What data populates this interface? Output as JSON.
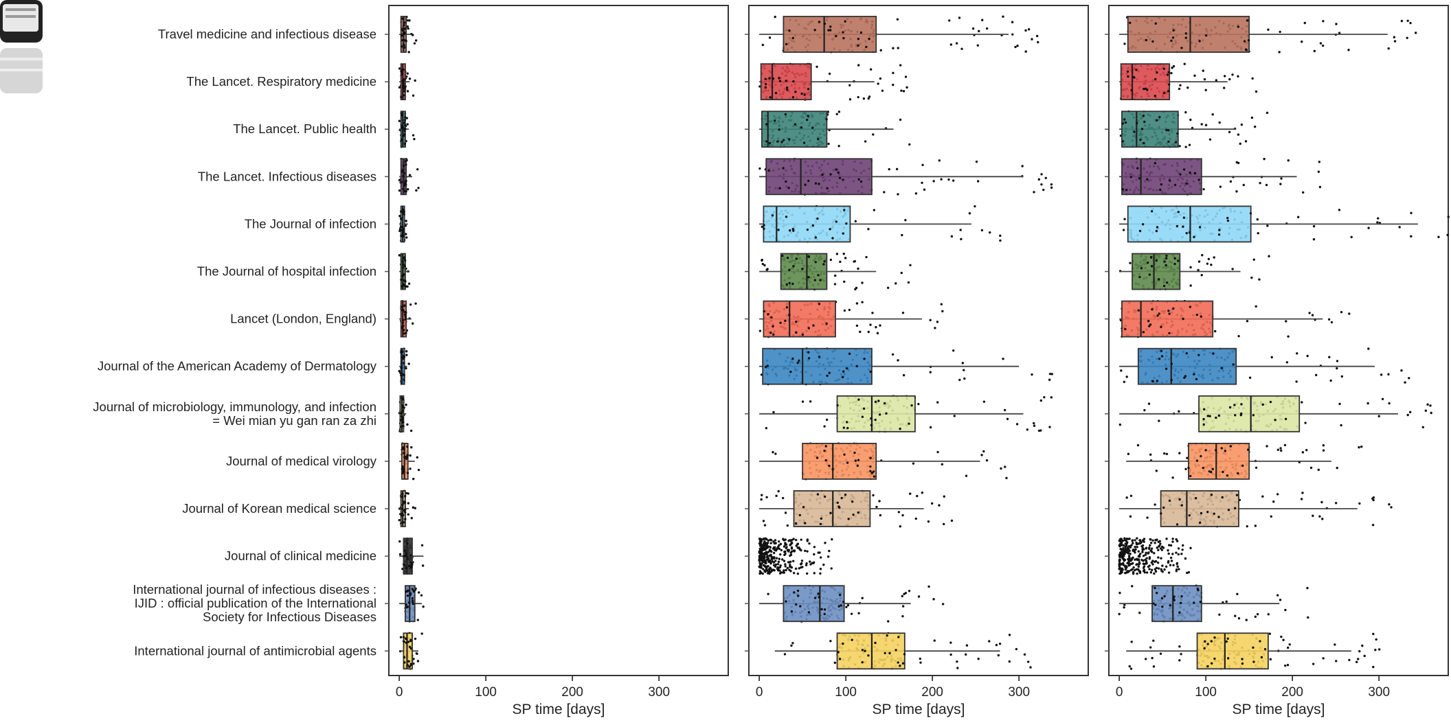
{
  "chart_data": {
    "type": "boxplot",
    "categories": [
      "Travel medicine and infectious disease",
      "The Lancet. Respiratory medicine",
      "The Lancet. Public health",
      "The Lancet. Infectious diseases",
      "The Journal of infection",
      "The Journal of hospital infection",
      "Lancet (London, England)",
      "Journal of the American Academy of Dermatology",
      "Journal of microbiology, immunology, and infection\n= Wei mian yu gan ran za zhi",
      "Journal of medical virology",
      "Journal of Korean medical science",
      "Journal of clinical medicine",
      "International journal of infectious diseases :\nIJID : official publication of the International\nSociety for Infectious Diseases",
      "International journal of antimicrobial agents"
    ],
    "colors": [
      "#b9725e",
      "#d9484c",
      "#3d8378",
      "#6e4376",
      "#8fd8f7",
      "#5e8a4c",
      "#f26b57",
      "#3b86c2",
      "#dbe6a4",
      "#f79460",
      "#d8b896",
      "#2f2f2f",
      "#6d8fc2",
      "#f5d35f"
    ],
    "xlabel": "SP time [days]",
    "xlim": [
      -12,
      380
    ],
    "xticks": [
      0,
      100,
      200,
      300
    ],
    "panels": [
      {
        "boxes": [
          {
            "q1": 2,
            "median": 5,
            "q3": 8,
            "whisker_low": 0,
            "whisker_high": 14
          },
          {
            "q1": 2,
            "median": 4,
            "q3": 7,
            "whisker_low": 0,
            "whisker_high": 12
          },
          {
            "q1": 2,
            "median": 4,
            "q3": 7,
            "whisker_low": 0,
            "whisker_high": 11
          },
          {
            "q1": 2,
            "median": 5,
            "q3": 8,
            "whisker_low": 0,
            "whisker_high": 15
          },
          {
            "q1": 2,
            "median": 4,
            "q3": 6,
            "whisker_low": 0,
            "whisker_high": 10
          },
          {
            "q1": 2,
            "median": 4,
            "q3": 7,
            "whisker_low": 0,
            "whisker_high": 12
          },
          {
            "q1": 2,
            "median": 4,
            "q3": 8,
            "whisker_low": 0,
            "whisker_high": 14
          },
          {
            "q1": 2,
            "median": 3,
            "q3": 6,
            "whisker_low": 0,
            "whisker_high": 9
          },
          {
            "q1": 1,
            "median": 3,
            "q3": 5,
            "whisker_low": 0,
            "whisker_high": 8
          },
          {
            "q1": 3,
            "median": 6,
            "q3": 10,
            "whisker_low": 0,
            "whisker_high": 18
          },
          {
            "q1": 2,
            "median": 4,
            "q3": 7,
            "whisker_low": 0,
            "whisker_high": 11
          },
          {
            "q1": 5,
            "median": 9,
            "q3": 15,
            "whisker_low": 0,
            "whisker_high": 28
          },
          {
            "q1": 7,
            "median": 12,
            "q3": 18,
            "whisker_low": 0,
            "whisker_high": 26
          },
          {
            "q1": 5,
            "median": 9,
            "q3": 15,
            "whisker_low": 0,
            "whisker_high": 22
          }
        ]
      },
      {
        "boxes": [
          {
            "q1": 28,
            "median": 75,
            "q3": 135,
            "whisker_low": 0,
            "whisker_high": 288
          },
          {
            "q1": 2,
            "median": 15,
            "q3": 60,
            "whisker_low": 0,
            "whisker_high": 133
          },
          {
            "q1": 3,
            "median": 10,
            "q3": 78,
            "whisker_low": 0,
            "whisker_high": 155
          },
          {
            "q1": 8,
            "median": 48,
            "q3": 130,
            "whisker_low": 0,
            "whisker_high": 305
          },
          {
            "q1": 5,
            "median": 20,
            "q3": 105,
            "whisker_low": 0,
            "whisker_high": 245
          },
          {
            "q1": 25,
            "median": 55,
            "q3": 78,
            "whisker_low": 0,
            "whisker_high": 135
          },
          {
            "q1": 5,
            "median": 35,
            "q3": 88,
            "whisker_low": 0,
            "whisker_high": 188
          },
          {
            "q1": 4,
            "median": 50,
            "q3": 130,
            "whisker_low": 0,
            "whisker_high": 300
          },
          {
            "q1": 90,
            "median": 130,
            "q3": 180,
            "whisker_low": 0,
            "whisker_high": 305
          },
          {
            "q1": 50,
            "median": 85,
            "q3": 135,
            "whisker_low": 0,
            "whisker_high": 255
          },
          {
            "q1": 40,
            "median": 85,
            "q3": 128,
            "whisker_low": 0,
            "whisker_high": 190
          },
          {
            "q1": 0,
            "median": 0,
            "q3": 0,
            "whisker_low": 0,
            "whisker_high": 0
          },
          {
            "q1": 28,
            "median": 70,
            "q3": 98,
            "whisker_low": 0,
            "whisker_high": 175
          },
          {
            "q1": 90,
            "median": 130,
            "q3": 168,
            "whisker_low": 18,
            "whisker_high": 278
          }
        ]
      },
      {
        "boxes": [
          {
            "q1": 10,
            "median": 82,
            "q3": 150,
            "whisker_low": 0,
            "whisker_high": 310
          },
          {
            "q1": 2,
            "median": 15,
            "q3": 58,
            "whisker_low": 0,
            "whisker_high": 125
          },
          {
            "q1": 3,
            "median": 20,
            "q3": 68,
            "whisker_low": 0,
            "whisker_high": 135
          },
          {
            "q1": 3,
            "median": 25,
            "q3": 95,
            "whisker_low": 0,
            "whisker_high": 205
          },
          {
            "q1": 10,
            "median": 82,
            "q3": 152,
            "whisker_low": 0,
            "whisker_high": 345
          },
          {
            "q1": 15,
            "median": 40,
            "q3": 70,
            "whisker_low": 0,
            "whisker_high": 140
          },
          {
            "q1": 3,
            "median": 25,
            "q3": 108,
            "whisker_low": 0,
            "whisker_high": 235
          },
          {
            "q1": 22,
            "median": 60,
            "q3": 135,
            "whisker_low": 0,
            "whisker_high": 295
          },
          {
            "q1": 92,
            "median": 152,
            "q3": 208,
            "whisker_low": 0,
            "whisker_high": 322
          },
          {
            "q1": 80,
            "median": 112,
            "q3": 150,
            "whisker_low": 8,
            "whisker_high": 245
          },
          {
            "q1": 48,
            "median": 78,
            "q3": 138,
            "whisker_low": 0,
            "whisker_high": 275
          },
          {
            "q1": 0,
            "median": 0,
            "q3": 0,
            "whisker_low": 0,
            "whisker_high": 0
          },
          {
            "q1": 38,
            "median": 62,
            "q3": 95,
            "whisker_low": 0,
            "whisker_high": 185
          },
          {
            "q1": 90,
            "median": 122,
            "q3": 172,
            "whisker_low": 8,
            "whisker_high": 268
          }
        ]
      }
    ]
  }
}
